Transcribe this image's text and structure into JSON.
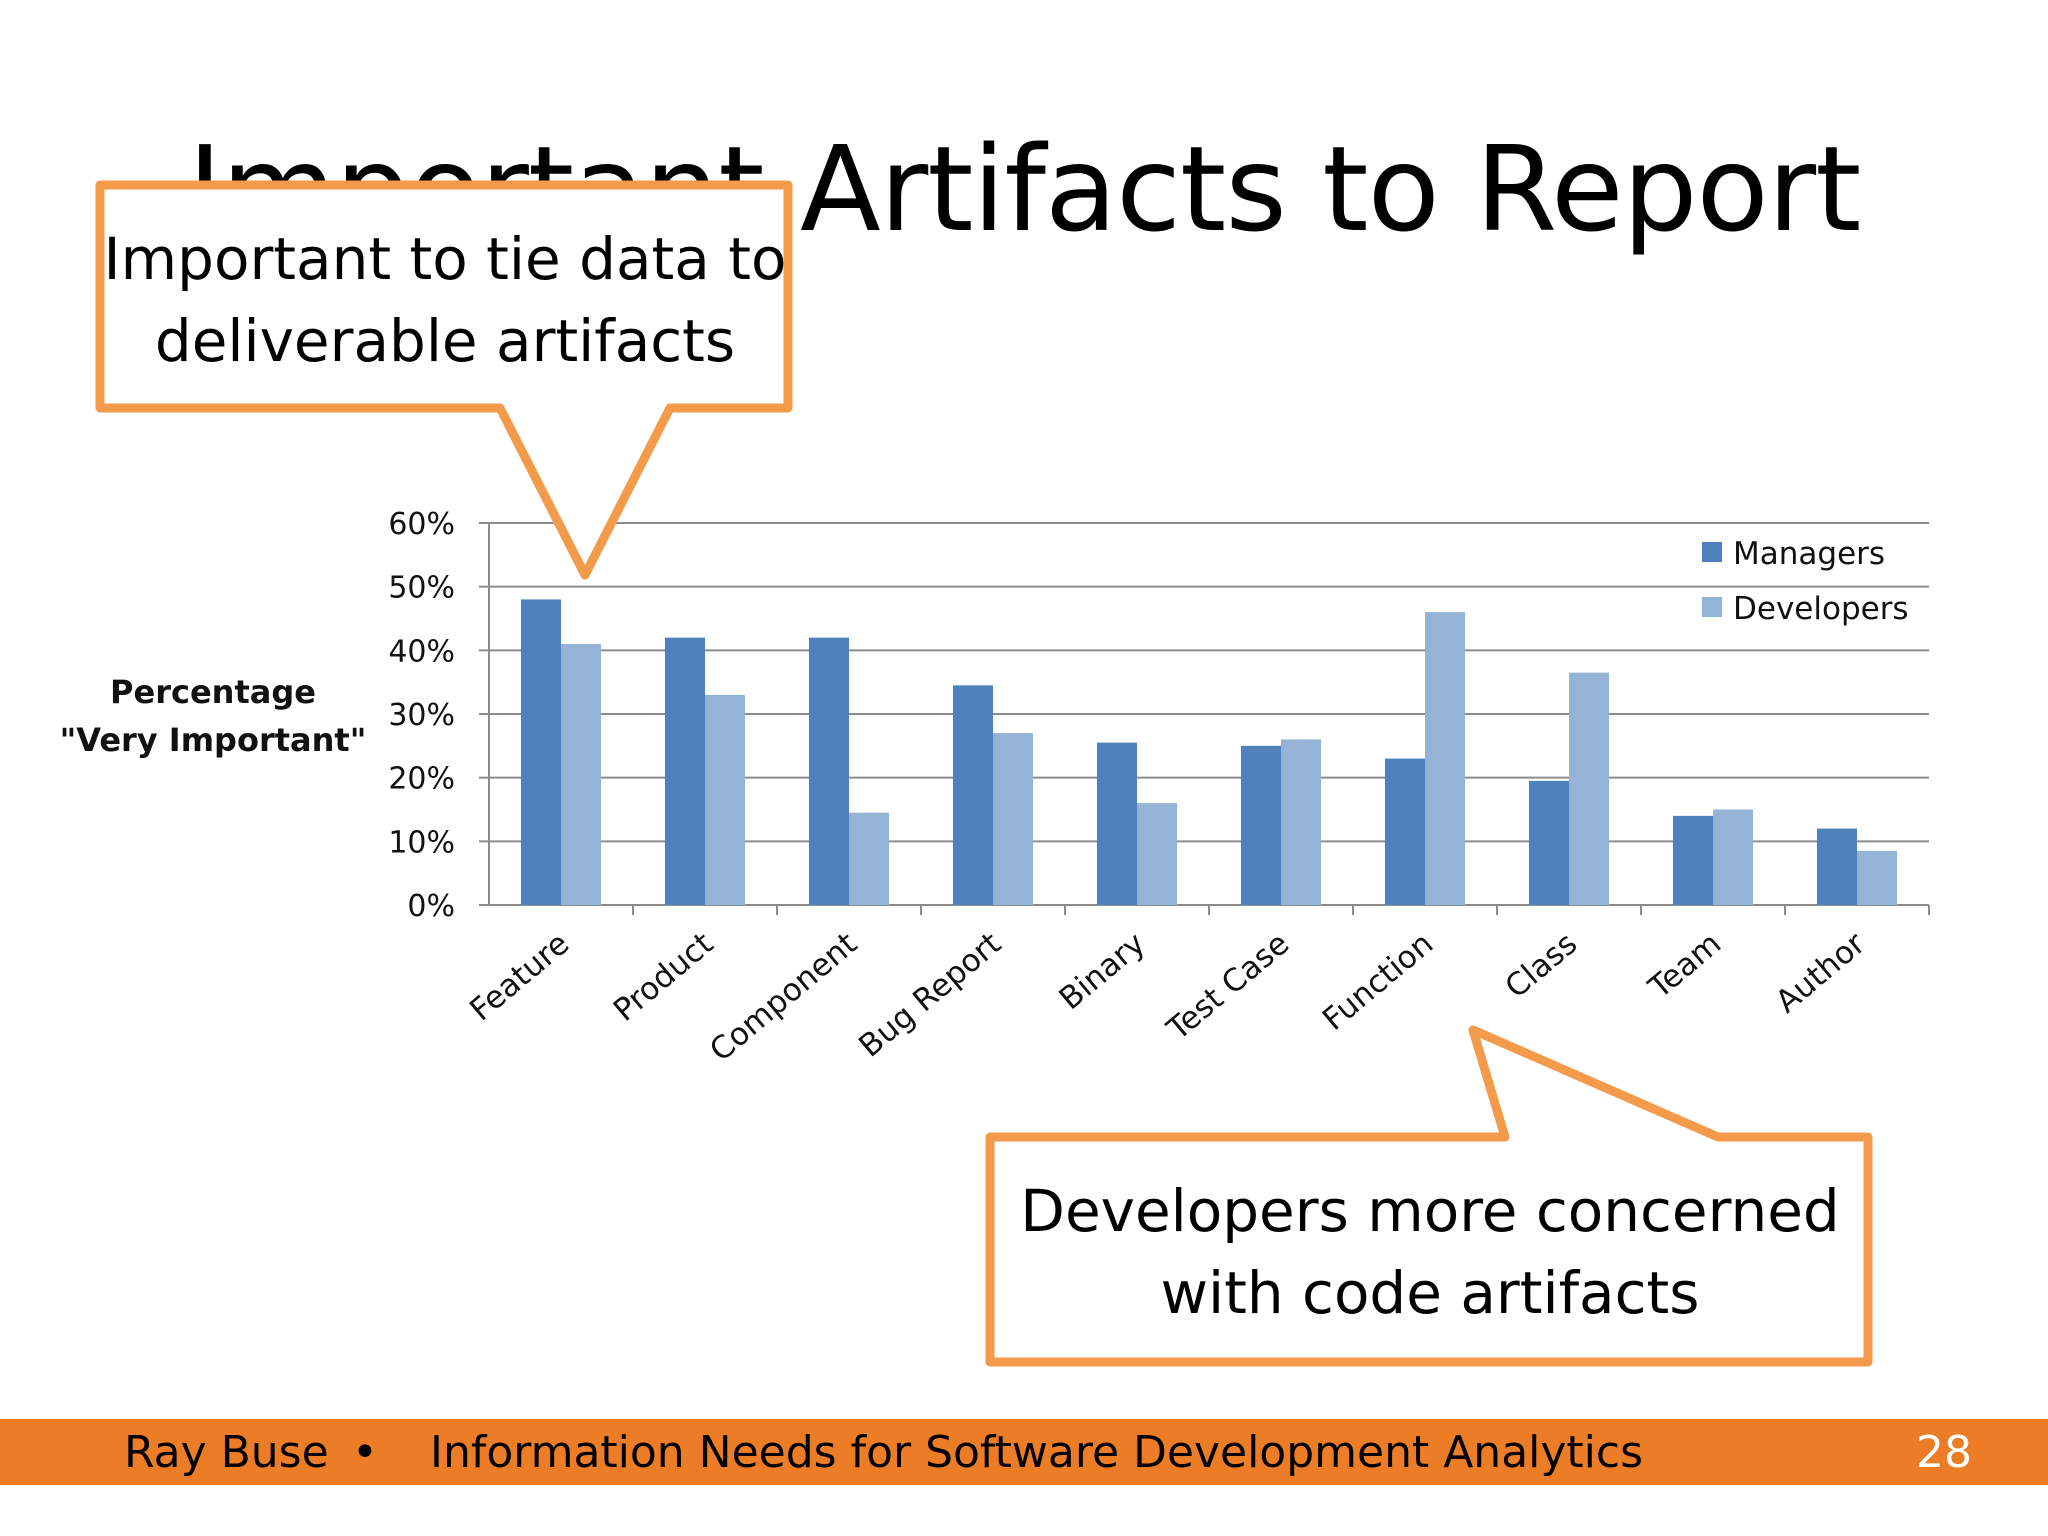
{
  "slide": {
    "title": "Important Artifacts to Report",
    "callouts": [
      "Important to tie data to deliverable artifacts",
      "Developers more concerned with code artifacts"
    ],
    "footer": {
      "author": "Ray Buse",
      "separator": "•",
      "subject": "Information Needs for Software Development Analytics",
      "page": "28"
    },
    "colors": {
      "accent": "#ec7d26",
      "callout_border": "#f39a4b"
    }
  },
  "chart_data": {
    "type": "bar",
    "ylabel": "Percentage \"Very Important\"",
    "ylabel_lines": [
      "Percentage",
      "\"Very Important\""
    ],
    "categories": [
      "Feature",
      "Product",
      "Component",
      "Bug Report",
      "Binary",
      "Test Case",
      "Function",
      "Class",
      "Team",
      "Author"
    ],
    "series": [
      {
        "name": "Managers",
        "color": "#4f81bd",
        "values": [
          48,
          42,
          42,
          34.5,
          25.5,
          25,
          23,
          19.5,
          14,
          12
        ]
      },
      {
        "name": "Developers",
        "color": "#95b3d7",
        "values": [
          41,
          33,
          14.5,
          27,
          16,
          26,
          46,
          36.5,
          15,
          8.5
        ]
      }
    ],
    "ylim": [
      0,
      60
    ],
    "yticks": [
      "0%",
      "10%",
      "20%",
      "30%",
      "40%",
      "50%",
      "60%"
    ],
    "grid": true,
    "legend": "top-right"
  }
}
